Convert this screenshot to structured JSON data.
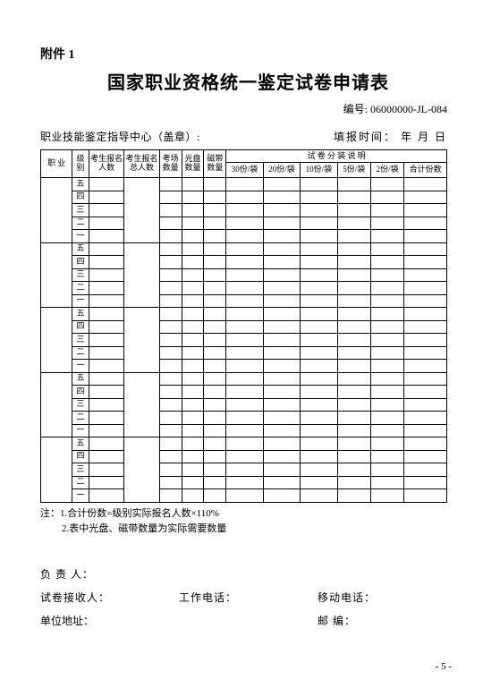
{
  "attachment_label": "附件 1",
  "title": "国家职业资格统一鉴定试卷申请表",
  "serial_label": "编号:",
  "serial_number": "06000000-JL-084",
  "meta_left": "职业技能鉴定指导中心（盖章）:",
  "meta_right": "填报时间：   年   月   日",
  "headers": {
    "occupation": "职 业",
    "level": "级别",
    "applicants": "考生报名人数",
    "applicants_total": "考生报名总人数",
    "exam_rooms": "考场数量",
    "cd_count": "光盘数量",
    "tape_count": "磁带数量",
    "packing_title": "试 卷 分 装 说 明",
    "p30": "30份/袋",
    "p20": "20份/袋",
    "p10": "10份/袋",
    "p5": "5份/袋",
    "p2": "2份/袋",
    "total": "合计份数"
  },
  "level_cycle": [
    "五",
    "四",
    "三",
    "二",
    "一"
  ],
  "group_count": 5,
  "notes": {
    "line1": "注：1.合计份数=级别实际报名人数×110%",
    "line2": "2.表中光盘、磁带数量为实际需要数量"
  },
  "contacts": {
    "responsible": "负 责 人：",
    "receiver": "试卷接收人：",
    "work_phone": "工作电话：",
    "mobile": "移动电话：",
    "address": "单位地址：",
    "postal": "邮     编："
  },
  "page_number": "- 5 -"
}
